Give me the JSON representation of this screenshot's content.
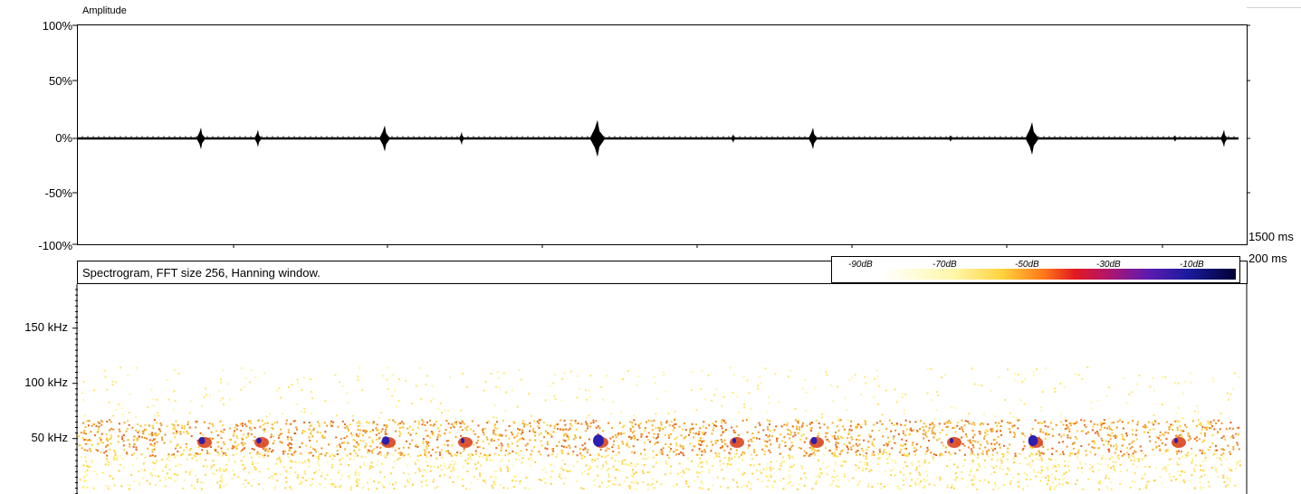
{
  "waveform": {
    "title": "Amplitude",
    "y_ticks": [
      "100%",
      "50%",
      "0%",
      "-50%",
      "-100%"
    ]
  },
  "time_scale": {
    "total_label": "1500 ms",
    "division_label": "200 ms"
  },
  "spectrogram": {
    "title": "Spectrogram, FFT size 256, Hanning window.",
    "y_ticks": [
      "150 kHz",
      "100 kHz",
      "50 kHz"
    ]
  },
  "legend": {
    "ticks": [
      "-90dB",
      "-70dB",
      "-50dB",
      "-30dB",
      "-10dB"
    ]
  },
  "chart_data": {
    "type": "line",
    "title": "Amplitude",
    "ylabel": "",
    "xlabel": "",
    "ylim": [
      -100,
      100
    ],
    "pulses": {
      "name": "",
      "amplitude_percent": [
        10,
        8,
        12,
        6,
        17,
        4,
        10,
        3,
        15,
        3,
        8
      ]
    },
    "colors": {
      "wave": "#000000",
      "spectro_low": "#fff38a",
      "spectro_mid": "#f7a21a",
      "spectro_high": "#d83a10",
      "pulse_core": "#2a1fb0"
    }
  }
}
